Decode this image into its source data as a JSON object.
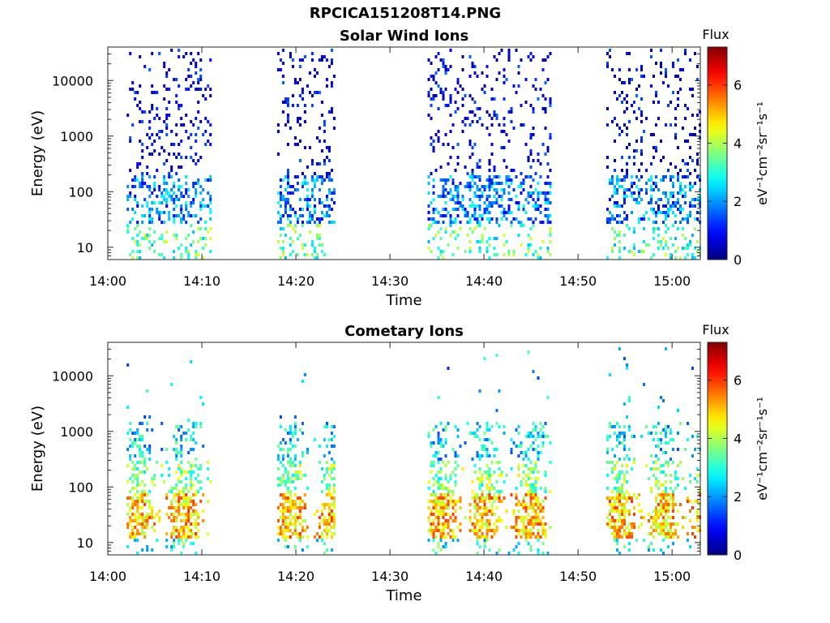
{
  "figure": {
    "title": "RPCICA151208T14.PNG"
  },
  "chart_data": [
    {
      "type": "heatmap",
      "title": "Solar Wind Ions",
      "xlabel": "Time",
      "ylabel": "Energy (eV)",
      "xlim": [
        "14:00",
        "15:03"
      ],
      "x_ticks": [
        "14:00",
        "14:10",
        "14:20",
        "14:30",
        "14:40",
        "14:50",
        "15:00"
      ],
      "y_scale": "log",
      "ylim": [
        6,
        40000
      ],
      "y_ticks": [
        "10",
        "100",
        "1000",
        "10000"
      ],
      "colorbar": {
        "label_top": "Flux",
        "label": "eV⁻¹cm⁻²sr⁻¹s⁻¹",
        "ticks": [
          "0",
          "2",
          "4",
          "6"
        ],
        "range": [
          0,
          7.3
        ],
        "colormap": "jet"
      },
      "active_intervals": [
        [
          "14:02",
          "14:11"
        ],
        [
          "14:18",
          "14:24"
        ],
        [
          "14:34",
          "14:47"
        ],
        [
          "14:53",
          "15:03"
        ]
      ],
      "flux_range": [
        0.5,
        4.5
      ],
      "typical_energy_range_eV": [
        10,
        30000
      ]
    },
    {
      "type": "heatmap",
      "title": "Cometary Ions",
      "xlabel": "Time",
      "ylabel": "Energy (eV)",
      "xlim": [
        "14:00",
        "15:03"
      ],
      "x_ticks": [
        "14:00",
        "14:10",
        "14:20",
        "14:30",
        "14:40",
        "14:50",
        "15:00"
      ],
      "y_scale": "log",
      "ylim": [
        6,
        40000
      ],
      "y_ticks": [
        "10",
        "100",
        "1000",
        "10000"
      ],
      "colorbar": {
        "label_top": "Flux",
        "label": "eV⁻¹cm⁻²sr⁻¹s⁻¹",
        "ticks": [
          "0",
          "2",
          "4",
          "6"
        ],
        "range": [
          0,
          7.3
        ],
        "colormap": "jet"
      },
      "active_intervals": [
        [
          "14:02",
          "14:11"
        ],
        [
          "14:18",
          "14:24"
        ],
        [
          "14:34",
          "14:47"
        ],
        [
          "14:53",
          "15:03"
        ]
      ],
      "flux_range": [
        1.0,
        6.5
      ],
      "peak_energy_range_eV": [
        15,
        60
      ],
      "typical_energy_range_eV": [
        10,
        1500
      ]
    }
  ]
}
